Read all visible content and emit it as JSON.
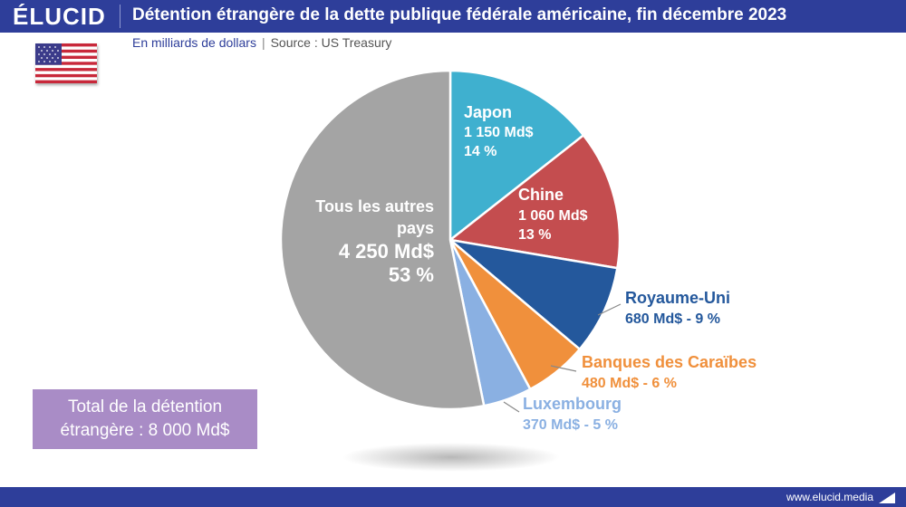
{
  "brand": "ÉLUCID",
  "title": "Détention étrangère de la dette publique fédérale américaine, fin décembre 2023",
  "subtitle_unit": "En milliards de dollars",
  "subtitle_separator": "|",
  "subtitle_source": "Source : US Treasury",
  "total_line1": "Total de la détention",
  "total_line2": "étrangère : 8 000 Md$",
  "footer_url": "www.elucid.media",
  "colors": {
    "header": "#2e3e9a",
    "total_box": "#a98cc6"
  },
  "icons": {
    "flag": "us-flag-icon",
    "footer_logo": "elucid-logo-icon"
  },
  "chart_data": {
    "type": "pie",
    "title": "Détention étrangère de la dette publique fédérale américaine, fin décembre 2023",
    "unit": "Md$",
    "slices": [
      {
        "name": "Japon",
        "value": 1150,
        "value_label": "1 150 Md$",
        "percent_label": "14 %",
        "color": "#3fb0cf"
      },
      {
        "name": "Chine",
        "value": 1060,
        "value_label": "1 060 Md$",
        "percent_label": "13 %",
        "color": "#c44d4f"
      },
      {
        "name": "Royaume-Uni",
        "value": 680,
        "value_label": "680 Md$ - 9 %",
        "color": "#24589c"
      },
      {
        "name": "Banques des Caraïbes",
        "value": 480,
        "value_label": "480 Md$ - 6 %",
        "color": "#f0903c"
      },
      {
        "name": "Luxembourg",
        "value": 370,
        "value_label": "370 Md$ - 5 %",
        "color": "#8ab0e2"
      },
      {
        "name_line1": "Tous les autres",
        "name_line2": "pays",
        "value": 4250,
        "value_label": "4 250 Md$",
        "percent_label": "53 %",
        "color": "#a4a4a4"
      }
    ]
  }
}
